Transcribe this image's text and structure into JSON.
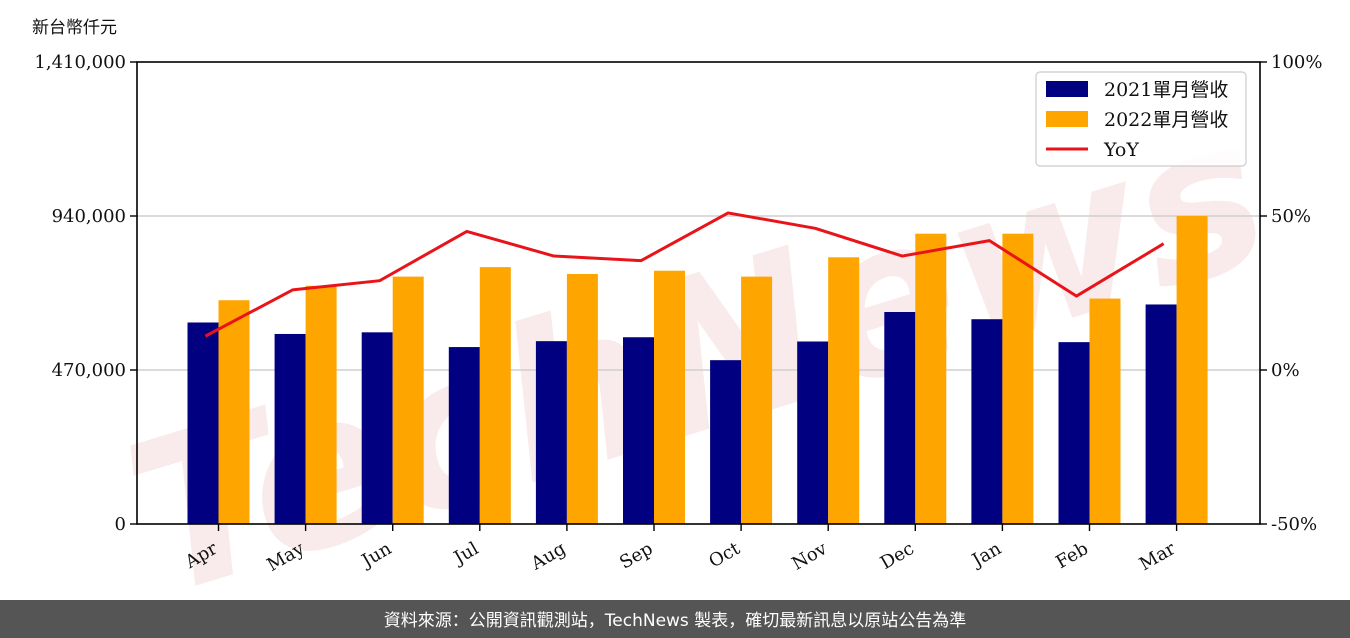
{
  "unit_label": "新台幣仟元",
  "watermark": "TechNews",
  "footer": "資料來源：公開資訊觀測站，TechNews 製表，確切最新訊息以原站公告為準",
  "colors": {
    "series_2021": "#000080",
    "series_2022": "#ffa500",
    "yoy_line": "#e8141a",
    "footer_bg": "#555555",
    "grid": "#cfcfcf"
  },
  "chart_data": {
    "type": "bar",
    "categories": [
      "Apr",
      "May",
      "Jun",
      "Jul",
      "Aug",
      "Sep",
      "Oct",
      "Nov",
      "Dec",
      "Jan",
      "Feb",
      "Mar"
    ],
    "series": [
      {
        "name": "2021單月營收",
        "type": "bar",
        "axis": "left",
        "values": [
          615000,
          580000,
          585000,
          540000,
          558000,
          570000,
          500000,
          557000,
          647000,
          625000,
          555000,
          670000
        ]
      },
      {
        "name": "2022單月營收",
        "type": "bar",
        "axis": "left",
        "values": [
          683000,
          727000,
          755000,
          784000,
          763000,
          773000,
          755000,
          814000,
          886000,
          886000,
          688000,
          940000
        ]
      },
      {
        "name": "YoY",
        "type": "line",
        "axis": "right",
        "unit": "%",
        "values": [
          11,
          26,
          29,
          45,
          37,
          35.5,
          51,
          46,
          37,
          42,
          24,
          41
        ]
      }
    ],
    "y_left": {
      "ylim": [
        0,
        1410000
      ],
      "ticks": [
        0,
        470000,
        940000,
        1410000
      ],
      "tick_labels": [
        "0",
        "470,000",
        "940,000",
        "1,410,000"
      ]
    },
    "y_right": {
      "ylim": [
        -50,
        100
      ],
      "ticks": [
        -50,
        0,
        50,
        100
      ],
      "tick_labels": [
        "-50%",
        "0%",
        "50%",
        "100%"
      ]
    },
    "grid": true,
    "legend": "top-right",
    "xlabel": "",
    "ylabel": ""
  }
}
